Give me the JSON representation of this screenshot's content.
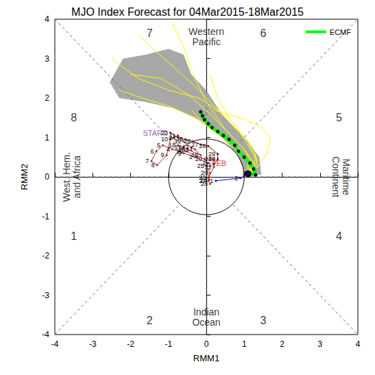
{
  "chart_data": {
    "type": "line",
    "title": "MJO Index Forecast for 04Mar2015-18Mar2015",
    "x_label": "RMM1",
    "y_label": "RMM2",
    "xlim": [
      -4,
      4
    ],
    "ylim": [
      -4,
      4
    ],
    "xticks": [
      -4,
      -3,
      -2,
      -1,
      0,
      1,
      2,
      3,
      4
    ],
    "yticks": [
      -4,
      -3,
      -2,
      -1,
      0,
      1,
      2,
      3,
      4
    ],
    "grid": false,
    "legend": "upper right",
    "phase_labels": [
      "1",
      "2",
      "3",
      "4",
      "5",
      "6",
      "7",
      "8"
    ],
    "region_labels": [
      "West. Hem.\nand Africa",
      "Indian\nOcean",
      "Maritime\nContinent",
      "Western\nPacific"
    ],
    "amplitude_circle": 1,
    "spread": {
      "color": "#a8a8a8",
      "x": [
        1.45,
        1.4,
        1.0,
        0.4,
        0.0,
        -0.4,
        -0.6,
        -1.0,
        -1.6,
        -2.2,
        -2.55,
        -2.3,
        -1.6,
        -0.9,
        -0.3,
        0.3,
        0.8,
        1.05
      ],
      "y": [
        0.05,
        0.5,
        1.0,
        1.6,
        2.2,
        2.6,
        3.1,
        3.25,
        3.1,
        3.0,
        2.4,
        2.0,
        1.9,
        1.75,
        1.5,
        1.1,
        0.6,
        0.05
      ]
    },
    "ensemble": {
      "color": "#ffff00",
      "members": [
        {
          "x": [
            1.1,
            1.35,
            1.2,
            0.8,
            0.3,
            -0.3,
            -1.0,
            -1.8
          ],
          "y": [
            0.08,
            0.4,
            0.8,
            1.2,
            1.7,
            2.3,
            2.9,
            3.6
          ]
        },
        {
          "x": [
            1.1,
            1.2,
            1.0,
            0.6,
            0.1,
            -0.5,
            -1.2,
            -2.0
          ],
          "y": [
            0.08,
            0.35,
            0.7,
            1.1,
            1.6,
            2.1,
            2.5,
            2.6
          ]
        },
        {
          "x": [
            1.1,
            1.4,
            1.6,
            1.7,
            1.4,
            0.9,
            0.5,
            0.2
          ],
          "y": [
            0.08,
            0.3,
            0.6,
            1.0,
            1.3,
            1.5,
            1.6,
            1.7
          ]
        },
        {
          "x": [
            1.1,
            1.1,
            0.8,
            0.3,
            -0.3,
            -1.0,
            -1.7,
            -2.3
          ],
          "y": [
            0.08,
            0.4,
            0.8,
            1.2,
            1.5,
            1.8,
            2.0,
            2.2
          ]
        },
        {
          "x": [
            1.1,
            1.3,
            1.0,
            0.5,
            0.0,
            -0.4,
            -0.6,
            -0.9
          ],
          "y": [
            0.08,
            0.3,
            0.7,
            1.2,
            1.9,
            2.7,
            3.3,
            3.9
          ]
        },
        {
          "x": [
            1.1,
            1.25,
            0.9,
            0.4,
            0.0,
            -0.2,
            -0.3,
            -0.4
          ],
          "y": [
            0.08,
            0.25,
            0.6,
            1.0,
            1.3,
            1.5,
            1.6,
            1.7
          ]
        },
        {
          "x": [
            1.1,
            1.3,
            1.1,
            0.6,
            -0.2,
            -1.0,
            -1.8,
            -2.5
          ],
          "y": [
            0.08,
            0.45,
            0.9,
            1.5,
            2.0,
            2.2,
            2.5,
            3.0
          ]
        },
        {
          "x": [
            1.1,
            1.35,
            1.3,
            1.1,
            0.9,
            0.6,
            0.3,
            0.1
          ],
          "y": [
            0.08,
            0.25,
            0.5,
            0.8,
            1.1,
            1.5,
            2.0,
            2.6
          ]
        }
      ]
    },
    "series": [
      {
        "name": "ECMF",
        "color": "#00ff00",
        "marker": "circle",
        "x": [
          1.1,
          1.3,
          1.25,
          1.15,
          1.0,
          0.85,
          0.75,
          0.6,
          0.45,
          0.3,
          0.15,
          0.05,
          -0.05,
          -0.1,
          -0.15
        ],
        "y": [
          0.08,
          0.05,
          0.2,
          0.35,
          0.5,
          0.65,
          0.8,
          0.95,
          1.05,
          1.15,
          1.25,
          1.35,
          1.45,
          1.55,
          1.65
        ]
      }
    ],
    "observed": [
      {
        "label": "START",
        "label_color": "#7b2f9f",
        "color": "#800000",
        "days": [
          23,
          24,
          25,
          26,
          27,
          28,
          29,
          30,
          31
        ],
        "x": [
          -0.95,
          -0.75,
          -0.55,
          -0.35,
          -0.15,
          0.05,
          0.3,
          0.3,
          0.2
        ],
        "y": [
          1.12,
          1.0,
          0.95,
          0.9,
          0.82,
          0.78,
          0.58,
          0.45,
          0.32
        ]
      },
      {
        "label": "FEB",
        "label_color": "#cc0000",
        "color": "#a52a2a",
        "days": [
          1,
          2,
          3,
          4,
          5,
          6,
          7,
          8,
          9,
          10,
          11,
          12,
          13,
          14,
          15,
          16,
          17,
          18,
          19,
          20,
          21,
          22,
          23,
          24,
          25,
          26,
          27,
          28
        ],
        "x": [
          0.05,
          -0.3,
          -0.6,
          -0.9,
          -1.15,
          -1.32,
          -1.45,
          -1.3,
          -1.05,
          -0.95,
          -0.75,
          -0.6,
          -0.4,
          -0.3,
          -0.15,
          -0.5,
          -0.6,
          -0.75,
          -0.55,
          -0.05,
          0.2,
          0.2,
          0.05,
          0.08,
          0.0,
          0.1,
          0.05,
          0.1
        ],
        "y": [
          0.35,
          0.5,
          0.6,
          0.7,
          0.8,
          0.65,
          0.4,
          0.3,
          0.55,
          0.95,
          1.05,
          0.9,
          0.75,
          0.7,
          0.55,
          0.7,
          0.75,
          0.8,
          0.65,
          0.45,
          0.45,
          0.25,
          -0.02,
          -0.08,
          0.27,
          0.1,
          -0.1,
          -0.18
        ]
      },
      {
        "color": "#0000ff",
        "days": [
          1,
          2,
          3
        ],
        "x": [
          0.25,
          0.9,
          1.1
        ],
        "y": [
          -0.1,
          -0.03,
          0.08
        ]
      }
    ]
  }
}
